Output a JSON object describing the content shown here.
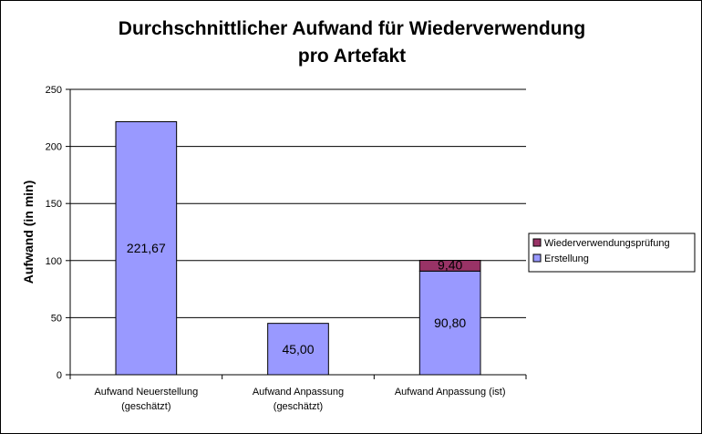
{
  "chart_data": {
    "type": "bar",
    "stacked": true,
    "title_lines": [
      "Durchschnittlicher Aufwand für Wiederverwendung",
      "pro Artefakt"
    ],
    "ylabel": "Aufwand (in min)",
    "xlabel": "",
    "ylim": [
      0,
      250
    ],
    "yticks": [
      0,
      50,
      100,
      150,
      200,
      250
    ],
    "grid": true,
    "legend_position": "right",
    "categories": [
      [
        "Aufwand Neuerstellung",
        "(geschätzt)"
      ],
      [
        "Aufwand Anpassung",
        "(geschätzt)"
      ],
      [
        "Aufwand Anpassung (ist)"
      ]
    ],
    "series": [
      {
        "name": "Erstellung",
        "color": "#9999ff",
        "values": [
          221.67,
          45.0,
          90.8
        ],
        "labels": [
          "221,67",
          "45,00",
          "90,80"
        ]
      },
      {
        "name": "Wiederverwendungsprüfung",
        "color": "#993366",
        "values": [
          0,
          0,
          9.4
        ],
        "labels": [
          "",
          "",
          "9,40"
        ]
      }
    ],
    "legend_order": [
      "Wiederverwendungsprüfung",
      "Erstellung"
    ]
  }
}
